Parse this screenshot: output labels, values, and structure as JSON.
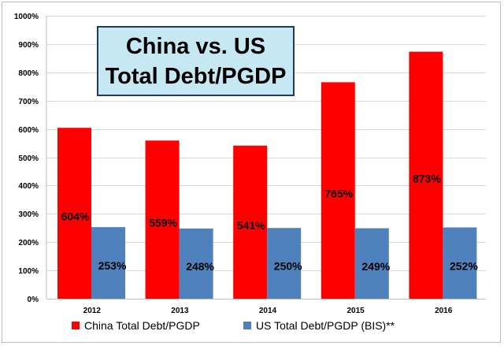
{
  "chart_data": {
    "type": "bar",
    "title_lines": [
      "China vs. US",
      "Total Debt/PGDP"
    ],
    "categories": [
      "2012",
      "2013",
      "2014",
      "2015",
      "2016"
    ],
    "series": [
      {
        "name": "China Total Debt/PGDP",
        "values": [
          604,
          559,
          541,
          765,
          873
        ],
        "labels": [
          "604%",
          "559%",
          "541%",
          "765%",
          "873%"
        ],
        "color": "#ff0000"
      },
      {
        "name": "US Total Debt/PGDP (BIS)**",
        "values": [
          253,
          248,
          250,
          249,
          252
        ],
        "labels": [
          "253%",
          "248%",
          "250%",
          "249%",
          "252%"
        ],
        "color": "#4f81bd"
      }
    ],
    "ylim": [
      0,
      1000
    ],
    "yticks": [
      0,
      100,
      200,
      300,
      400,
      500,
      600,
      700,
      800,
      900,
      1000
    ],
    "ytick_labels": [
      "0%",
      "100%",
      "200%",
      "300%",
      "400%",
      "500%",
      "600%",
      "700%",
      "800%",
      "900%",
      "1000%"
    ],
    "grid": true,
    "legend_position": "bottom"
  }
}
